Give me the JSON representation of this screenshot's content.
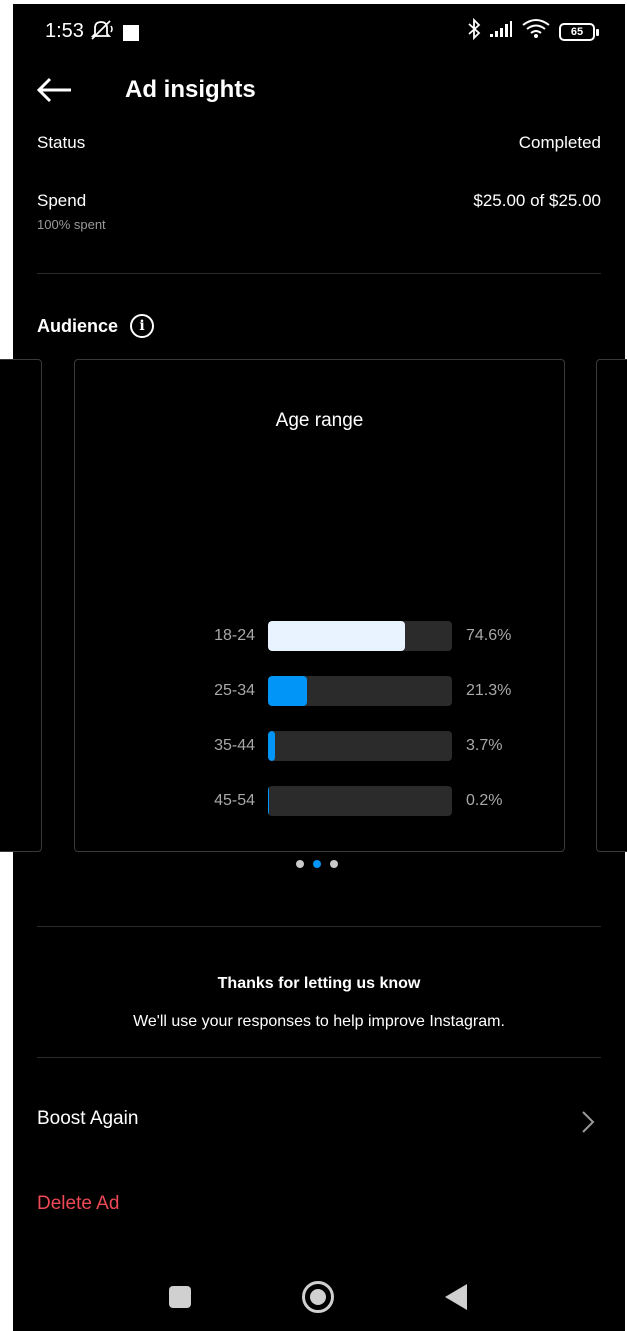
{
  "status_bar": {
    "time": "1:53",
    "battery": "65",
    "icons": [
      "mute-icon",
      "square-icon",
      "bluetooth-icon",
      "signal-icon",
      "wifi-icon",
      "battery-icon"
    ]
  },
  "header": {
    "title": "Ad insights"
  },
  "status_row": {
    "label": "Status",
    "value": "Completed"
  },
  "spend_row": {
    "label": "Spend",
    "sub": "100% spent",
    "value": "$25.00 of $25.00"
  },
  "audience": {
    "label": "Audience",
    "info_icon": "i"
  },
  "card": {
    "title": "Age range",
    "bars": [
      {
        "label": "18-24",
        "value": "74.6%",
        "fraction": 0.746,
        "color": "#e8f3ff"
      },
      {
        "label": "25-34",
        "value": "21.3%",
        "fraction": 0.213,
        "color": "#0095f6"
      },
      {
        "label": "35-44",
        "value": "3.7%",
        "fraction": 0.037,
        "color": "#0095f6"
      },
      {
        "label": "45-54",
        "value": "0.2%",
        "fraction": 0.002,
        "color": "#0095f6"
      }
    ]
  },
  "pager": {
    "count": 3,
    "active_index": 1,
    "active_color": "#0095f6"
  },
  "feedback": {
    "title": "Thanks for letting us know",
    "subtitle": "We'll use your responses to help improve Instagram."
  },
  "actions": {
    "boost_label": "Boost Again",
    "delete_label": "Delete Ad",
    "delete_color": "#ed4956"
  }
}
